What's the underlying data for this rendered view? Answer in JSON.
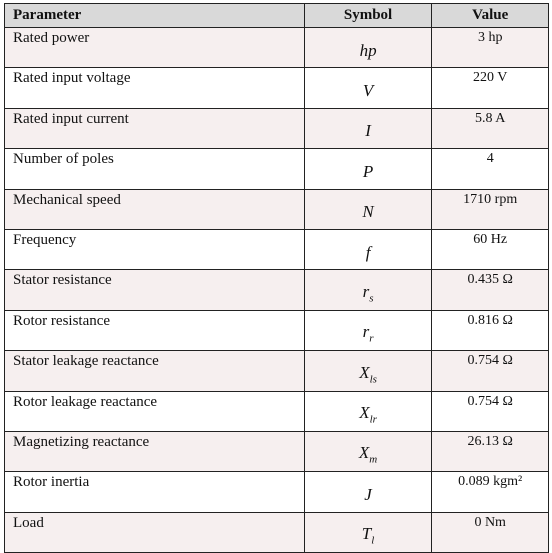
{
  "table": {
    "header": [
      "Parameter",
      "Symbol",
      "Value"
    ],
    "rows": [
      [
        "Rated power",
        {
          "base": "hp"
        },
        "3 hp"
      ],
      [
        "Rated input voltage",
        {
          "base": "V"
        },
        "220 V"
      ],
      [
        "Rated input current",
        {
          "base": "I"
        },
        "5.8 A"
      ],
      [
        "Number of poles",
        {
          "base": "P"
        },
        "4"
      ],
      [
        "Mechanical speed",
        {
          "base": "N"
        },
        "1710 rpm"
      ],
      [
        "Frequency",
        {
          "base": "f"
        },
        "60 Hz"
      ],
      [
        "Stator resistance",
        {
          "base": "r",
          "sub": "s"
        },
        "0.435 Ω"
      ],
      [
        "Rotor resistance",
        {
          "base": "r",
          "sub": "r"
        },
        "0.816 Ω"
      ],
      [
        "Stator leakage reactance",
        {
          "base": "X",
          "sub": "ls"
        },
        "0.754 Ω"
      ],
      [
        "Rotor leakage reactance",
        {
          "base": "X",
          "sub": "lr"
        },
        "0.754 Ω"
      ],
      [
        "Magnetizing reactance",
        {
          "base": "X",
          "sub": "m"
        },
        "26.13 Ω"
      ],
      [
        "Rotor inertia",
        {
          "base": "J"
        },
        "0.089 kgm²"
      ],
      [
        "Load",
        {
          "base": "T",
          "sub": "l"
        },
        "0 Nm"
      ]
    ]
  }
}
